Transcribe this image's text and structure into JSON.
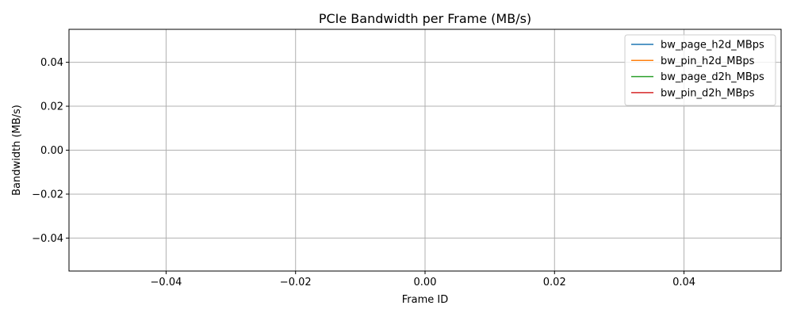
{
  "chart_data": {
    "type": "line",
    "title": "PCIe Bandwidth per Frame (MB/s)",
    "xlabel": "Frame ID",
    "ylabel": "Bandwidth (MB/s)",
    "xlim": [
      -0.055,
      0.055
    ],
    "ylim": [
      -0.055,
      0.055
    ],
    "x_ticks": [
      -0.04,
      -0.02,
      0.0,
      0.02,
      0.04
    ],
    "x_tick_labels": [
      "−0.04",
      "−0.02",
      "0.00",
      "0.02",
      "0.04"
    ],
    "y_ticks": [
      -0.04,
      -0.02,
      0.0,
      0.02,
      0.04
    ],
    "y_tick_labels": [
      "−0.04",
      "−0.02",
      "0.00",
      "0.02",
      "0.04"
    ],
    "grid": true,
    "legend_position": "top-right",
    "x": [],
    "series": [
      {
        "name": "bw_page_h2d_MBps",
        "color": "#1f77b4",
        "values": []
      },
      {
        "name": "bw_pin_h2d_MBps",
        "color": "#ff7f0e",
        "values": []
      },
      {
        "name": "bw_page_d2h_MBps",
        "color": "#2ca02c",
        "values": []
      },
      {
        "name": "bw_pin_d2h_MBps",
        "color": "#d62728",
        "values": []
      }
    ]
  }
}
